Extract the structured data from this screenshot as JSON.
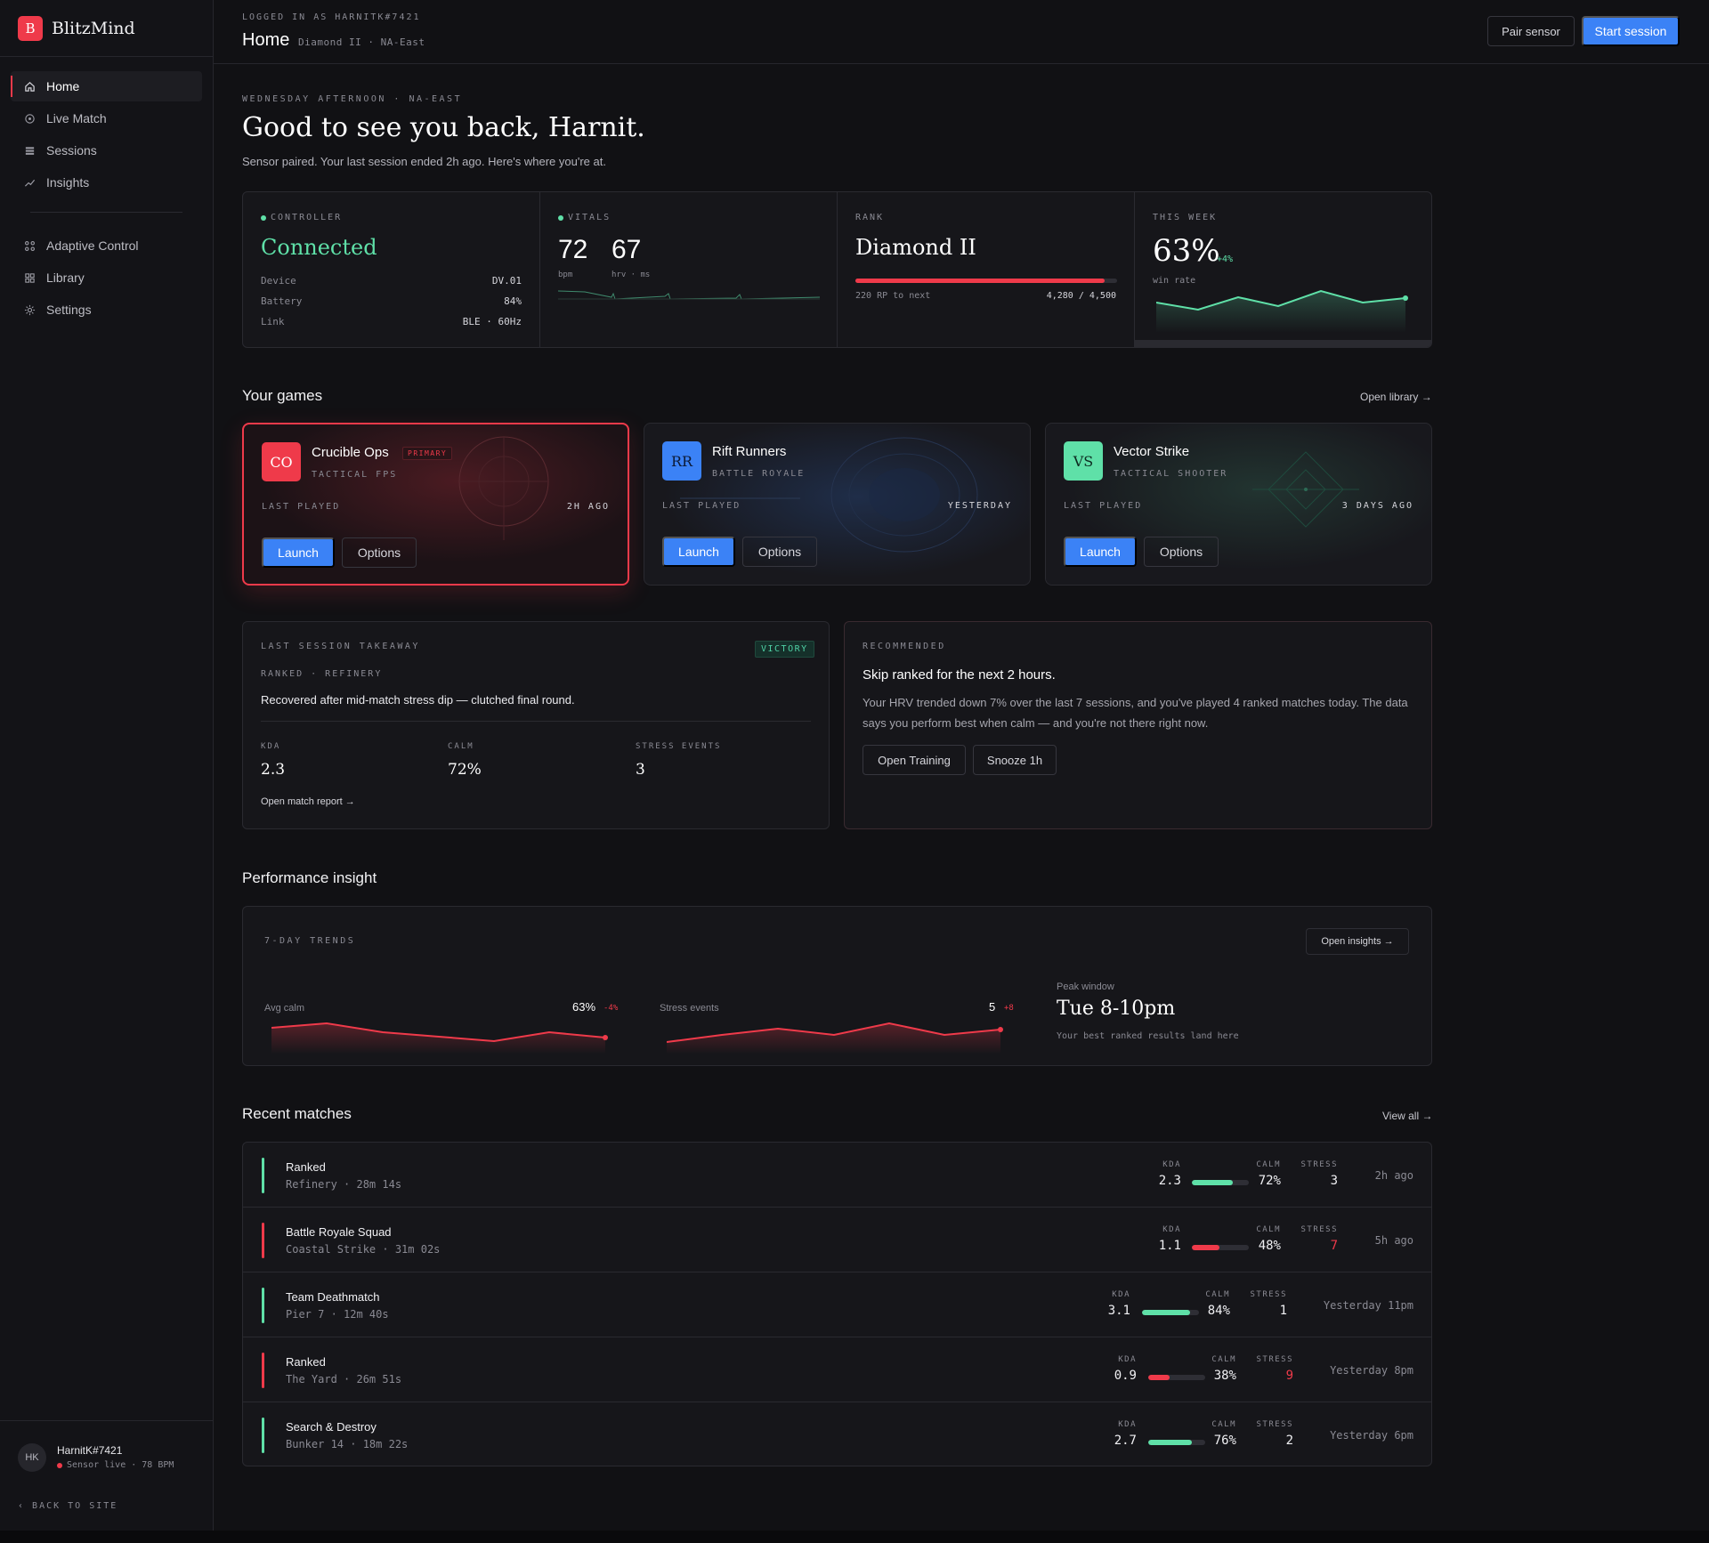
{
  "brand": {
    "name": "BlitzMind",
    "logo_letter": "B"
  },
  "sidebar": {
    "items": [
      {
        "label": "Home",
        "icon": "home-icon",
        "active": true
      },
      {
        "label": "Live Match",
        "icon": "target-icon"
      },
      {
        "label": "Sessions",
        "icon": "list-icon"
      },
      {
        "label": "Insights",
        "icon": "trend-icon"
      },
      {
        "label": "Adaptive Control",
        "icon": "control-icon"
      },
      {
        "label": "Library",
        "icon": "grid-icon"
      },
      {
        "label": "Settings",
        "icon": "gear-icon"
      }
    ],
    "user": {
      "initials": "HK",
      "name": "HarnitK#7421",
      "status": "Sensor live · 78 BPM"
    },
    "back_link": "BACK TO SITE"
  },
  "topbar": {
    "logged_in": "LOGGED IN AS HARNITK#7421",
    "title": "Home",
    "subtitle": "Diamond II · NA-East",
    "pair_sensor": "Pair sensor",
    "start_session": "Start session"
  },
  "hero": {
    "eyebrow": "WEDNESDAY AFTERNOON · NA-EAST",
    "greeting": "Good to see you back, Harnit.",
    "subtitle": "Sensor paired. Your last session ended 2h ago. Here's where you're at."
  },
  "stats": {
    "controller": {
      "label": "CONTROLLER",
      "status": "Connected",
      "rows": [
        {
          "k": "Device",
          "v": "DV.01"
        },
        {
          "k": "Battery",
          "v": "84%"
        },
        {
          "k": "Link",
          "v": "BLE · 60Hz"
        }
      ]
    },
    "vitals": {
      "label": "VITALS",
      "bpm": "72",
      "bpm_unit": "bpm",
      "hrv": "67",
      "hrv_unit": "hrv · ms"
    },
    "rank": {
      "label": "RANK",
      "name": "Diamond II",
      "progress": 0.951,
      "to_next": "220 RP to next",
      "points": "4,280 / 4,500"
    },
    "week": {
      "label": "THIS WEEK",
      "value": "63%",
      "delta": "+4%",
      "caption": "win rate"
    }
  },
  "games_section": {
    "title": "Your games",
    "link": "Open library →"
  },
  "games": [
    {
      "badge": "CO",
      "title": "Crucible Ops",
      "tag": "PRIMARY",
      "genre": "TACTICAL FPS",
      "last_played_label": "LAST PLAYED",
      "last_played": "2H AGO",
      "launch": "Launch",
      "options": "Options",
      "badge_color": "#ef3a4a"
    },
    {
      "badge": "RR",
      "title": "Rift Runners",
      "tag": "",
      "genre": "BATTLE ROYALE",
      "last_played_label": "LAST PLAYED",
      "last_played": "YESTERDAY",
      "launch": "Launch",
      "options": "Options",
      "badge_color": "#3b82f6"
    },
    {
      "badge": "VS",
      "title": "Vector Strike",
      "tag": "",
      "genre": "TACTICAL SHOOTER",
      "last_played_label": "LAST PLAYED",
      "last_played": "3 DAYS AGO",
      "launch": "Launch",
      "options": "Options",
      "badge_color": "#5fe0a8"
    }
  ],
  "takeaway": {
    "label": "LAST SESSION TAKEAWAY",
    "result": "VICTORY",
    "context": "RANKED · REFINERY",
    "summary": "Recovered after mid-match stress dip — clutched final round.",
    "metrics": [
      {
        "label": "KDA",
        "value": "2.3"
      },
      {
        "label": "CALM",
        "value": "72%"
      },
      {
        "label": "STRESS EVENTS",
        "value": "3"
      }
    ],
    "link": "Open match report →"
  },
  "recommend": {
    "label": "RECOMMENDED",
    "title": "Skip ranked for the next 2 hours.",
    "body": "Your HRV trended down 7% over the last 7 sessions, and you've played 4 ranked matches today. The data says you perform best when calm — and you're not there right now.",
    "primary": "Open Training",
    "secondary": "Snooze 1h"
  },
  "perf_section": {
    "title": "Performance insight"
  },
  "perf": {
    "label": "7-DAY TRENDS",
    "link": "Open insights →",
    "calm": {
      "label": "Avg calm",
      "value": "63%",
      "delta": "-4%"
    },
    "stress": {
      "label": "Stress events",
      "value": "5",
      "delta": "+8"
    },
    "peak": {
      "label": "Peak window",
      "value": "Tue 8-10pm",
      "caption": "Your best ranked results land here"
    }
  },
  "matches_section": {
    "title": "Recent matches",
    "link": "View all →"
  },
  "match_labels": {
    "kda": "KDA",
    "calm": "CALM",
    "stress": "STRESS"
  },
  "matches": [
    {
      "mode": "Ranked",
      "map": "Refinery · 28m 14s",
      "kda": "2.3",
      "calm": "72%",
      "calm_frac": 0.72,
      "stress": "3",
      "when": "2h ago",
      "win": true
    },
    {
      "mode": "Battle Royale Squad",
      "map": "Coastal Strike · 31m 02s",
      "kda": "1.1",
      "calm": "48%",
      "calm_frac": 0.48,
      "stress": "7",
      "when": "5h ago",
      "win": false
    },
    {
      "mode": "Team Deathmatch",
      "map": "Pier 7 · 12m 40s",
      "kda": "3.1",
      "calm": "84%",
      "calm_frac": 0.84,
      "stress": "1",
      "when": "Yesterday 11pm",
      "win": true
    },
    {
      "mode": "Ranked",
      "map": "The Yard · 26m 51s",
      "kda": "0.9",
      "calm": "38%",
      "calm_frac": 0.38,
      "stress": "9",
      "when": "Yesterday 8pm",
      "win": false
    },
    {
      "mode": "Search & Destroy",
      "map": "Bunker 14 · 18m 22s",
      "kda": "2.7",
      "calm": "76%",
      "calm_frac": 0.76,
      "stress": "2",
      "when": "Yesterday 6pm",
      "win": true
    }
  ],
  "colors": {
    "accent_red": "#ef3a4a",
    "accent_green": "#5fe0a8",
    "accent_blue": "#3b82f6"
  }
}
